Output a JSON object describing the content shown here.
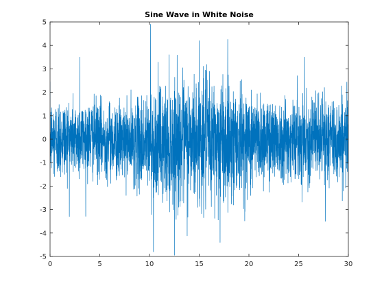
{
  "chart_data": {
    "type": "line",
    "title": "Sine Wave in White Noise",
    "xlabel": "",
    "ylabel": "",
    "xlim": [
      0,
      30
    ],
    "ylim": [
      -5,
      5
    ],
    "x_ticks": [
      0,
      5,
      10,
      15,
      20,
      25,
      30
    ],
    "y_ticks": [
      -5,
      -4,
      -3,
      -2,
      -1,
      0,
      1,
      2,
      3,
      4,
      5
    ],
    "x_tick_labels": [
      "0",
      "5",
      "10",
      "15",
      "20",
      "25",
      "30"
    ],
    "y_tick_labels": [
      "-5",
      "-4",
      "-3",
      "-2",
      "-1",
      "0",
      "1",
      "2",
      "3",
      "4",
      "5"
    ],
    "grid": false,
    "line_color": "#0072BD",
    "series": [
      {
        "sampling": "about 100 samples per unit of x, 0 to 30",
        "signal": "sine wave with amplitude 0.8, period 20, peak at x = 15",
        "noise": "white noise, standard deviation 0.8",
        "envelope_x": [
          0,
          2,
          4,
          6,
          8,
          10,
          12,
          14,
          16,
          18,
          20,
          22,
          24,
          26,
          28,
          30
        ],
        "envelope_upper": [
          2.3,
          2.2,
          2.1,
          2.0,
          1.9,
          2.6,
          3.1,
          3.3,
          3.4,
          3.2,
          2.7,
          2.3,
          2.2,
          2.2,
          2.3,
          2.4
        ],
        "envelope_lower": [
          -2.3,
          -2.1,
          -2.0,
          -2.1,
          -2.2,
          -3.0,
          -3.5,
          -3.6,
          -3.5,
          -3.3,
          -2.8,
          -2.2,
          -2.1,
          -2.2,
          -2.3,
          -2.4
        ],
        "extremes": [
          {
            "x": 10.1,
            "y": 4.9
          },
          {
            "x": 10.4,
            "y": -4.8
          },
          {
            "x": 17.1,
            "y": -4.4
          },
          {
            "x": 15.0,
            "y": 4.2
          },
          {
            "x": 27.7,
            "y": -3.5
          },
          {
            "x": 3.0,
            "y": 3.5
          },
          {
            "x": 25.6,
            "y": 3.5
          }
        ]
      }
    ]
  }
}
